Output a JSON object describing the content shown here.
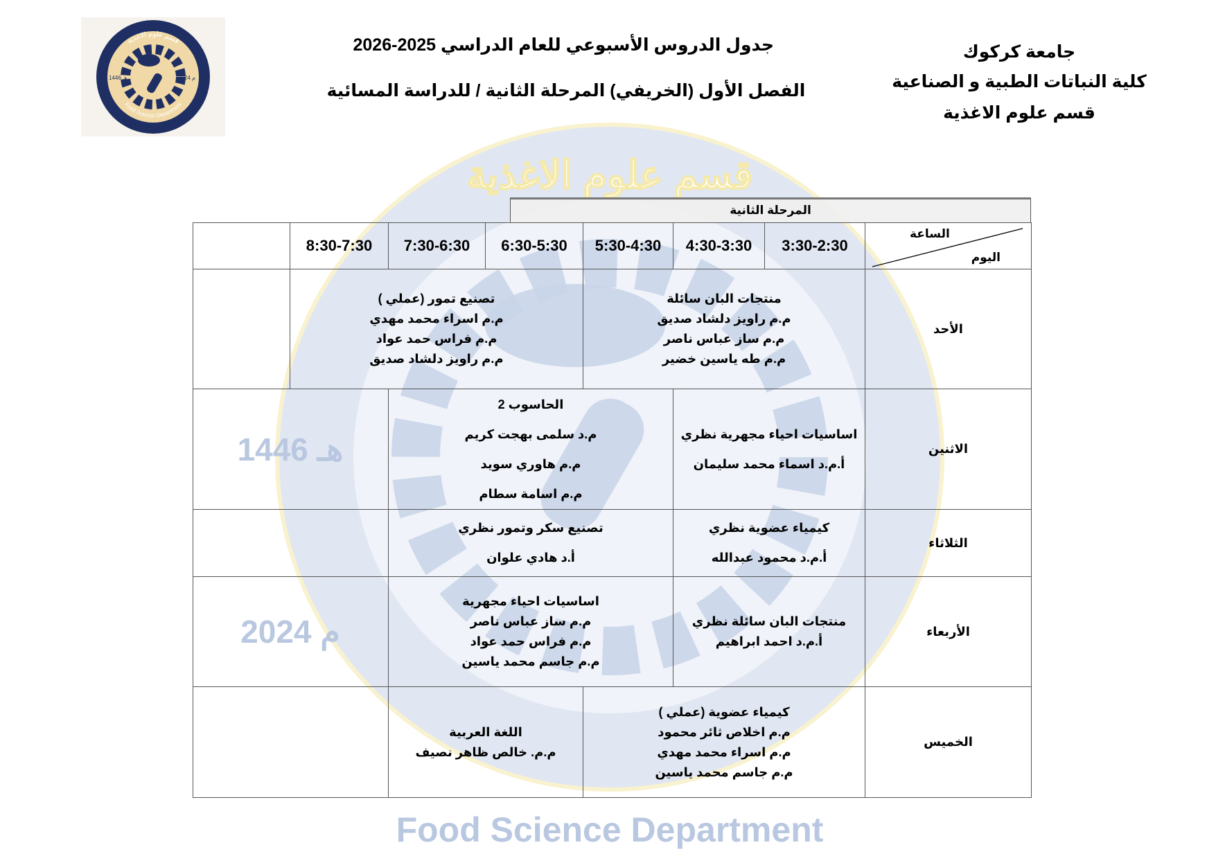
{
  "header": {
    "university": "جامعة كركوك",
    "college": "كلية النباتات الطبية و الصناعية",
    "department": "قسم علوم الاغذية",
    "title": "جدول الدروس الأسبوعي للعام الدراسي 2025-2026",
    "subtitle": "الفصل الأول (الخريفي) المرحلة الثانية  /  للدراسة المسائية"
  },
  "logo": {
    "arabic": "قسم علوم الاغذية",
    "english": "Food Science Department",
    "year_g": "2024 م",
    "year_h": "1446 هـ"
  },
  "watermark": {
    "arabic": "قسم علوم الاغذية",
    "english": "Food Science Department",
    "year_g": "2024 م",
    "year_h": "1446 هـ",
    "color": "#c9d5e8",
    "accent": "#f5e9a8"
  },
  "table": {
    "phase": "المرحلة الثانية",
    "corner_hour": "الساعة",
    "corner_day": "اليوم",
    "times": [
      "3:30-2:30",
      "4:30-3:30",
      "5:30-4:30",
      "6:30-5:30",
      "7:30-6:30",
      "8:30-7:30",
      ""
    ],
    "rows": [
      {
        "day": "الأحد",
        "cells": [
          {
            "span": 3,
            "lines": [
              "منتجات البان سائلة",
              "م.م راويز دلشاد صديق",
              "م.م ساز  عباس ناصر",
              "م.م طه ياسين خضير"
            ]
          },
          {
            "span": 3,
            "lines": [
              "تصنيع تمور (عملي )",
              "م.م اسراء محمد مهدي",
              "م.م فراس حمد عواد",
              "م.م راويز دلشاد صديق"
            ]
          },
          {
            "span": 1,
            "lines": []
          }
        ]
      },
      {
        "day": "الاثنين",
        "cells": [
          {
            "span": 2,
            "loose": true,
            "lines": [
              "اساسيات احياء مجهرية نظري",
              "أ.م.د اسماء محمد سليمان"
            ]
          },
          {
            "span": 3,
            "loose": true,
            "lines": [
              "الحاسوب 2",
              "م.د سلمى بهجت كريم",
              "م.م هاوري سويد",
              "م.م اسامة سطام"
            ]
          },
          {
            "span": 2,
            "lines": []
          }
        ]
      },
      {
        "day": "الثلاثاء",
        "cells": [
          {
            "span": 2,
            "loose": true,
            "lines": [
              "كيمياء عضوية نظري",
              "أ.م.د محمود عبدالله"
            ]
          },
          {
            "span": 3,
            "loose": true,
            "lines": [
              "تصنيع سكر وتمور نظري",
              "أ.د هادي علوان"
            ]
          },
          {
            "span": 2,
            "lines": []
          }
        ]
      },
      {
        "day": "الأربعاء",
        "cells": [
          {
            "span": 2,
            "lines": [
              "منتجات البان سائلة نظري",
              "أ.م.د احمد ابراهيم"
            ]
          },
          {
            "span": 3,
            "lines": [
              "اساسيات احياء مجهرية",
              "م.م ساز  عباس ناصر",
              "م.م فراس حمد عواد",
              "م.م جاسم محمد ياسين"
            ]
          },
          {
            "span": 2,
            "lines": []
          }
        ]
      },
      {
        "day": "الخميس",
        "cells": [
          {
            "span": 3,
            "lines": [
              "كيمياء عضوية (عملي )",
              "م.م اخلاص ثائر محمود",
              "م.م اسراء محمد مهدي",
              "م.م جاسم محمد ياسين"
            ]
          },
          {
            "span": 2,
            "lines": [
              "اللغة العربية",
              "م.م. خالص ظاهر نصيف"
            ]
          },
          {
            "span": 2,
            "lines": []
          }
        ]
      }
    ]
  }
}
